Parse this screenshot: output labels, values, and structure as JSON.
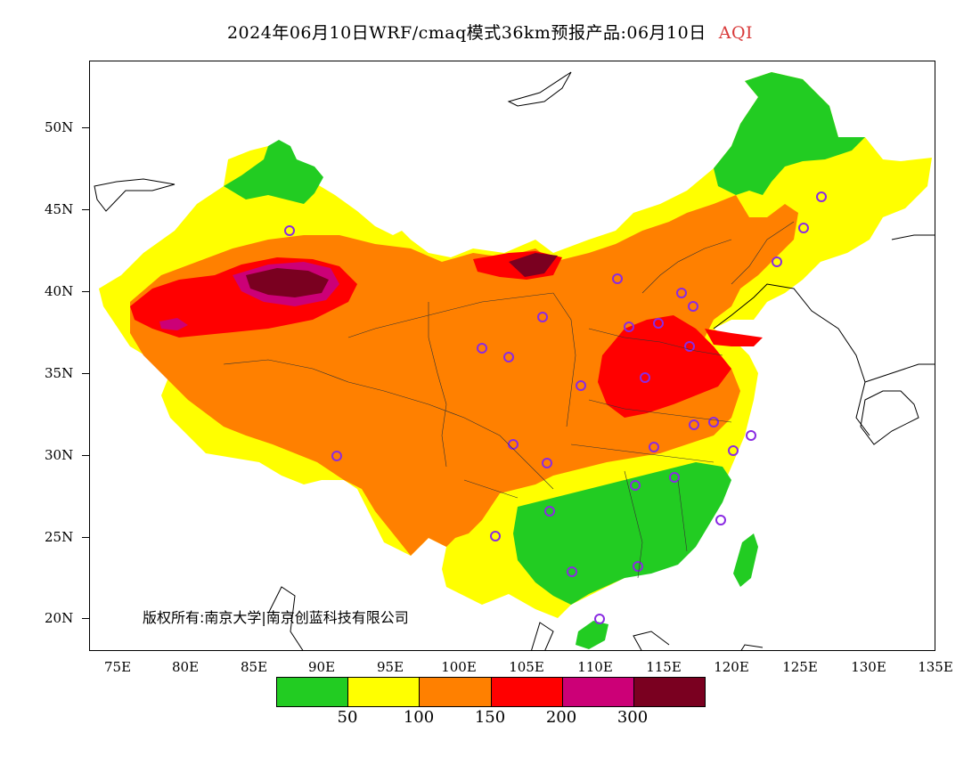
{
  "title": {
    "main": "2024年06月10日WRF/cmaq模式36km预报产品:06月10日",
    "variable": "AQI"
  },
  "axes": {
    "lat_ticks": [
      "50N",
      "45N",
      "40N",
      "35N",
      "30N",
      "25N",
      "20N"
    ],
    "lon_ticks": [
      "75E",
      "80E",
      "85E",
      "90E",
      "95E",
      "100E",
      "105E",
      "110E",
      "115E",
      "120E",
      "125E",
      "130E",
      "135E"
    ]
  },
  "copyright": "版权所有:南京大学|南京创蓝科技有限公司",
  "legend": {
    "colors": [
      "#22cc22",
      "#ffff00",
      "#ff8000",
      "#ff0000",
      "#cc0077",
      "#7a0020"
    ],
    "labels": [
      "50",
      "100",
      "150",
      "200",
      "300"
    ]
  },
  "map_colors": {
    "good": "#22cc22",
    "moderate": "#ffff00",
    "unhealthy_sensitive": "#ff8000",
    "unhealthy": "#ff0000",
    "very_unhealthy": "#cc0077",
    "hazardous": "#7a0020",
    "station_marker": "#8a2be2"
  }
}
